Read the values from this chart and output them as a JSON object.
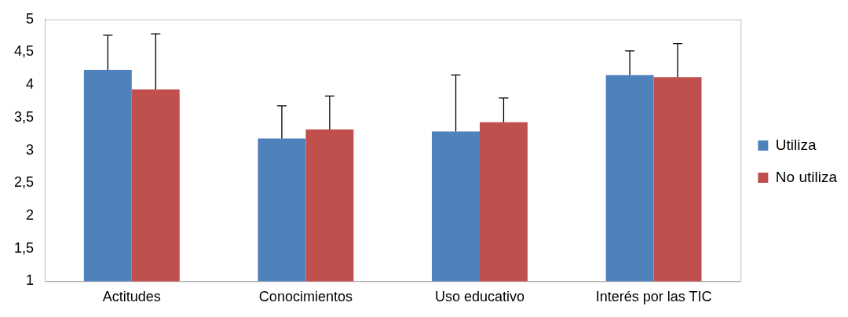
{
  "chart_data": {
    "type": "bar",
    "categories": [
      "Actitudes",
      "Conocimientos",
      "Uso educativo",
      "Interés por las TIC"
    ],
    "series": [
      {
        "name": "Utiliza",
        "color": "#4f81bd",
        "values": [
          4.23,
          3.18,
          3.29,
          4.15
        ],
        "errors": [
          [
            4.23,
            4.76
          ],
          [
            3.18,
            3.68
          ],
          [
            3.29,
            4.15
          ],
          [
            4.15,
            4.52
          ]
        ]
      },
      {
        "name": "No utiliza",
        "color": "#c0504d",
        "values": [
          3.93,
          3.32,
          3.43,
          4.12
        ],
        "errors": [
          [
            3.93,
            4.78
          ],
          [
            3.32,
            3.83
          ],
          [
            3.43,
            3.8
          ],
          [
            4.12,
            4.63
          ]
        ]
      }
    ],
    "ylim": [
      1,
      5
    ],
    "yticks": [
      1,
      {
        "value": 1.5,
        "label": "1,5"
      },
      2,
      {
        "value": 2.5,
        "label": "2,5"
      },
      3,
      {
        "value": 3.5,
        "label": "3,5"
      },
      4,
      {
        "value": 4.5,
        "label": "4,5"
      },
      5
    ],
    "grid": false,
    "legend": "right"
  }
}
